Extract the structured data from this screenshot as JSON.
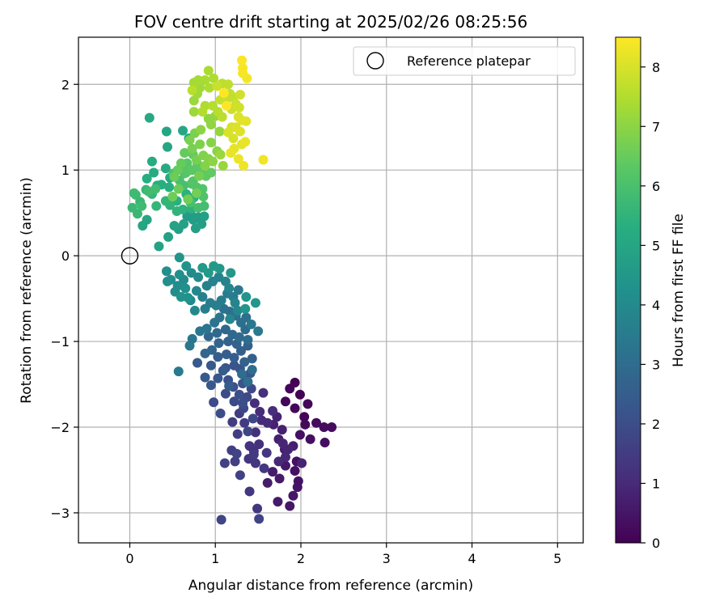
{
  "chart_data": {
    "type": "scatter",
    "title": "FOV centre drift starting at 2025/02/26 08:25:56",
    "xlabel": "Angular distance from reference (arcmin)",
    "ylabel": "Rotation from reference (arcmin)",
    "xlim": [
      -0.6,
      5.3
    ],
    "ylim": [
      -3.35,
      2.55
    ],
    "x_ticks": [
      0,
      1,
      2,
      3,
      4,
      5
    ],
    "y_ticks": [
      -3,
      -2,
      -1,
      0,
      1,
      2
    ],
    "grid": true,
    "legend": {
      "placement": "top-right",
      "entries": [
        "Reference platepar"
      ]
    },
    "colorbar": {
      "label": "Hours from first FF file",
      "range": [
        0,
        8.5
      ],
      "ticks": [
        0,
        1,
        2,
        3,
        4,
        5,
        6,
        7,
        8
      ],
      "colormap": "viridis"
    },
    "reference_point": {
      "x": 0,
      "y": 0,
      "name": "Reference platepar"
    },
    "series": [
      {
        "color_value": "hours",
        "points": [
          [
            1.93,
            -1.48
          ],
          [
            1.99,
            -1.62
          ],
          [
            2.04,
            -1.88
          ],
          [
            1.87,
            -1.55
          ],
          [
            1.82,
            -1.7
          ],
          [
            1.93,
            -1.78
          ],
          [
            2.08,
            -1.73
          ],
          [
            2.05,
            -1.97
          ],
          [
            2.18,
            -1.95
          ],
          [
            2.27,
            -2.0
          ],
          [
            2.36,
            -2.0
          ],
          [
            2.28,
            -2.18
          ],
          [
            2.11,
            -2.14
          ],
          [
            1.99,
            -2.09
          ],
          [
            1.95,
            -2.4
          ],
          [
            1.93,
            -2.51
          ],
          [
            1.97,
            -2.63
          ],
          [
            1.96,
            -2.7
          ],
          [
            1.91,
            -2.8
          ],
          [
            1.87,
            -2.92
          ],
          [
            1.82,
            -2.45
          ],
          [
            1.75,
            -2.6
          ],
          [
            1.73,
            -2.87
          ],
          [
            1.67,
            -2.52
          ],
          [
            1.61,
            -2.65
          ],
          [
            1.81,
            -2.26
          ],
          [
            1.74,
            -2.14
          ],
          [
            1.91,
            -2.22
          ],
          [
            1.78,
            -2.03
          ],
          [
            1.68,
            -1.97
          ],
          [
            1.72,
            -1.88
          ],
          [
            2.01,
            -2.42
          ],
          [
            1.85,
            -2.26
          ],
          [
            1.79,
            -2.19
          ],
          [
            1.82,
            -2.35
          ],
          [
            1.74,
            -2.4
          ],
          [
            1.61,
            -1.95
          ],
          [
            1.54,
            -1.92
          ],
          [
            1.52,
            -1.82
          ],
          [
            1.67,
            -1.81
          ],
          [
            1.46,
            -1.72
          ],
          [
            1.56,
            -1.6
          ],
          [
            1.47,
            -2.06
          ],
          [
            1.51,
            -2.2
          ],
          [
            1.45,
            -2.28
          ],
          [
            1.4,
            -2.22
          ],
          [
            1.47,
            -2.42
          ],
          [
            1.39,
            -2.37
          ],
          [
            1.6,
            -2.3
          ],
          [
            1.4,
            -2.75
          ],
          [
            1.49,
            -2.95
          ],
          [
            1.57,
            -2.48
          ],
          [
            1.45,
            -2.32
          ],
          [
            1.34,
            -1.95
          ],
          [
            1.28,
            -1.84
          ],
          [
            1.2,
            -1.94
          ],
          [
            1.26,
            -2.08
          ],
          [
            1.19,
            -2.27
          ],
          [
            1.23,
            -2.4
          ],
          [
            1.11,
            -2.42
          ],
          [
            1.29,
            -2.56
          ],
          [
            1.25,
            -2.31
          ],
          [
            1.51,
            -3.07
          ],
          [
            1.07,
            -3.08
          ],
          [
            1.44,
            -1.9
          ],
          [
            1.38,
            -2.05
          ],
          [
            1.33,
            -1.78
          ],
          [
            1.42,
            -1.55
          ],
          [
            1.37,
            -1.65
          ],
          [
            1.22,
            -1.7
          ],
          [
            1.12,
            -1.61
          ],
          [
            0.98,
            -1.71
          ],
          [
            1.06,
            -1.84
          ],
          [
            1.32,
            -1.72
          ],
          [
            1.28,
            -1.62
          ],
          [
            1.21,
            -1.53
          ],
          [
            1.15,
            -1.45
          ],
          [
            1.32,
            -1.49
          ],
          [
            1.36,
            -1.42
          ],
          [
            1.41,
            -1.37
          ],
          [
            1.29,
            -1.32
          ],
          [
            1.22,
            -1.28
          ],
          [
            1.12,
            -1.31
          ],
          [
            1.03,
            -1.43
          ],
          [
            0.95,
            -1.51
          ],
          [
            0.88,
            -1.42
          ],
          [
            0.79,
            -1.25
          ],
          [
            0.95,
            -1.28
          ],
          [
            1.09,
            -1.34
          ],
          [
            1.16,
            -1.52
          ],
          [
            1.03,
            -1.18
          ],
          [
            1.13,
            -1.15
          ],
          [
            1.22,
            -1.19
          ],
          [
            1.3,
            -1.11
          ],
          [
            1.38,
            -1.05
          ],
          [
            1.43,
            -1.2
          ],
          [
            1.34,
            -1.24
          ],
          [
            1.25,
            -1.03
          ],
          [
            1.15,
            -1.0
          ],
          [
            1.04,
            -1.02
          ],
          [
            0.96,
            -1.1
          ],
          [
            0.88,
            -1.14
          ],
          [
            0.92,
            -0.94
          ],
          [
            1.02,
            -0.9
          ],
          [
            1.12,
            -0.86
          ],
          [
            1.2,
            -0.92
          ],
          [
            1.28,
            -0.95
          ],
          [
            1.35,
            -0.86
          ],
          [
            1.38,
            -0.98
          ],
          [
            1.43,
            -1.33
          ],
          [
            1.31,
            -1.38
          ],
          [
            1.38,
            -1.47
          ],
          [
            1.36,
            -0.72
          ],
          [
            1.3,
            -0.78
          ],
          [
            1.24,
            -0.7
          ],
          [
            1.17,
            -0.65
          ],
          [
            1.1,
            -0.62
          ],
          [
            1.05,
            -0.72
          ],
          [
            0.99,
            -0.78
          ],
          [
            0.9,
            -0.85
          ],
          [
            0.82,
            -0.88
          ],
          [
            0.73,
            -0.97
          ],
          [
            0.7,
            -1.05
          ],
          [
            1.42,
            -0.8
          ],
          [
            1.5,
            -0.88
          ],
          [
            0.57,
            -1.35
          ],
          [
            1.27,
            -0.4
          ],
          [
            1.21,
            -0.48
          ],
          [
            1.14,
            -0.44
          ],
          [
            1.07,
            -0.52
          ],
          [
            1.01,
            -0.58
          ],
          [
            0.94,
            -0.55
          ],
          [
            0.88,
            -0.62
          ],
          [
            0.85,
            -0.48
          ],
          [
            0.9,
            -0.35
          ],
          [
            0.97,
            -0.3
          ],
          [
            1.04,
            -0.25
          ],
          [
            1.12,
            -0.3
          ],
          [
            1.16,
            -0.38
          ],
          [
            1.23,
            -0.55
          ],
          [
            1.26,
            -0.64
          ],
          [
            1.17,
            -0.74
          ],
          [
            0.78,
            -0.41
          ],
          [
            0.71,
            -0.52
          ],
          [
            0.76,
            -0.64
          ],
          [
            0.8,
            -0.25
          ],
          [
            0.72,
            -0.2
          ],
          [
            0.63,
            -0.28
          ],
          [
            0.56,
            -0.35
          ],
          [
            0.53,
            -0.42
          ],
          [
            0.48,
            -0.28
          ],
          [
            0.43,
            -0.18
          ],
          [
            0.44,
            -0.3
          ],
          [
            0.58,
            -0.22
          ],
          [
            0.65,
            -0.38
          ],
          [
            0.68,
            -0.49
          ],
          [
            0.6,
            -0.48
          ],
          [
            0.66,
            -0.12
          ],
          [
            0.58,
            -0.02
          ],
          [
            1.36,
            -0.48
          ],
          [
            1.47,
            -0.55
          ],
          [
            1.35,
            -0.62
          ],
          [
            1.18,
            -0.2
          ],
          [
            1.05,
            -0.15
          ],
          [
            0.92,
            -0.2
          ],
          [
            0.85,
            -0.14
          ],
          [
            0.98,
            -0.12
          ],
          [
            0.67,
            0.46
          ],
          [
            0.74,
            0.42
          ],
          [
            0.71,
            0.5
          ],
          [
            0.8,
            0.45
          ],
          [
            0.87,
            0.46
          ],
          [
            0.84,
            0.37
          ],
          [
            0.77,
            0.32
          ],
          [
            0.57,
            0.31
          ],
          [
            0.63,
            0.37
          ],
          [
            0.52,
            0.35
          ],
          [
            0.45,
            0.22
          ],
          [
            0.34,
            0.11
          ],
          [
            0.15,
            0.35
          ],
          [
            0.2,
            0.42
          ],
          [
            0.43,
            1.45
          ],
          [
            0.44,
            1.27
          ],
          [
            0.62,
            1.46
          ],
          [
            0.69,
            1.37
          ],
          [
            0.23,
            1.61
          ],
          [
            0.47,
            0.91
          ],
          [
            0.42,
            1.02
          ],
          [
            0.26,
            1.1
          ],
          [
            0.28,
            0.97
          ],
          [
            0.2,
            0.9
          ],
          [
            0.32,
            0.82
          ],
          [
            0.37,
            0.83
          ],
          [
            0.46,
            0.8
          ],
          [
            0.55,
            0.64
          ],
          [
            0.66,
            0.72
          ],
          [
            0.75,
            0.68
          ],
          [
            0.72,
            0.55
          ],
          [
            0.62,
            0.54
          ],
          [
            0.55,
            0.52
          ],
          [
            0.47,
            0.59
          ],
          [
            0.42,
            0.64
          ],
          [
            0.31,
            0.58
          ],
          [
            0.26,
            0.72
          ],
          [
            0.19,
            0.77
          ],
          [
            0.12,
            0.63
          ],
          [
            0.09,
            0.49
          ],
          [
            0.03,
            0.56
          ],
          [
            0.07,
            0.71
          ],
          [
            0.05,
            0.73
          ],
          [
            0.14,
            0.58
          ],
          [
            0.22,
            0.75
          ],
          [
            0.3,
            0.78
          ],
          [
            0.87,
            0.58
          ],
          [
            0.8,
            0.56
          ],
          [
            0.71,
            0.62
          ],
          [
            0.63,
            0.82
          ],
          [
            0.58,
            0.88
          ],
          [
            0.51,
            0.96
          ],
          [
            0.64,
            0.96
          ],
          [
            0.72,
            0.84
          ],
          [
            0.86,
            0.69
          ],
          [
            0.85,
            0.78
          ],
          [
            0.78,
            0.8
          ],
          [
            0.74,
            0.87
          ],
          [
            0.66,
            0.97
          ],
          [
            0.6,
            1.02
          ],
          [
            0.67,
            1.08
          ],
          [
            0.73,
            1.0
          ],
          [
            0.79,
            1.07
          ],
          [
            0.84,
            1.0
          ],
          [
            0.89,
            0.93
          ],
          [
            0.95,
            0.97
          ],
          [
            0.74,
            1.18
          ],
          [
            0.64,
            1.2
          ],
          [
            0.6,
            1.08
          ],
          [
            0.56,
            1.0
          ],
          [
            0.52,
            0.92
          ],
          [
            0.57,
            0.78
          ],
          [
            0.5,
            0.69
          ],
          [
            0.68,
            0.66
          ],
          [
            0.78,
            0.73
          ],
          [
            0.81,
            0.93
          ],
          [
            0.78,
            1.12
          ],
          [
            0.73,
            1.25
          ],
          [
            0.7,
            1.35
          ],
          [
            0.76,
            1.43
          ],
          [
            0.82,
            1.3
          ],
          [
            0.86,
            1.17
          ],
          [
            0.92,
            1.13
          ],
          [
            0.88,
            1.05
          ],
          [
            0.95,
            1.32
          ],
          [
            1.02,
            1.22
          ],
          [
            0.97,
            1.1
          ],
          [
            0.83,
            1.47
          ],
          [
            0.92,
            1.6
          ],
          [
            0.95,
            1.53
          ],
          [
            1.0,
            1.63
          ],
          [
            1.05,
            1.45
          ],
          [
            1.09,
            1.05
          ],
          [
            1.06,
            1.18
          ],
          [
            0.75,
            1.81
          ],
          [
            0.75,
            1.68
          ],
          [
            0.79,
            1.89
          ],
          [
            0.82,
            1.96
          ],
          [
            0.75,
            2.02
          ],
          [
            0.8,
            2.05
          ],
          [
            0.88,
            2.05
          ],
          [
            0.92,
            2.16
          ],
          [
            0.93,
            1.96
          ],
          [
            0.98,
            2.07
          ],
          [
            0.88,
            1.75
          ],
          [
            0.85,
            1.68
          ],
          [
            0.97,
            1.75
          ],
          [
            1.03,
            1.68
          ],
          [
            0.73,
            1.93
          ],
          [
            1.08,
            1.62
          ],
          [
            1.08,
            2.01
          ],
          [
            1.15,
            2.0
          ],
          [
            1.17,
            1.89
          ],
          [
            1.21,
            1.85
          ],
          [
            1.13,
            1.82
          ],
          [
            1.06,
            1.82
          ],
          [
            1.02,
            1.98
          ],
          [
            1.19,
            1.71
          ],
          [
            1.24,
            1.77
          ],
          [
            1.28,
            1.73
          ],
          [
            1.29,
            1.88
          ],
          [
            1.19,
            1.5
          ],
          [
            1.21,
            1.37
          ],
          [
            1.15,
            1.44
          ],
          [
            1.27,
            1.62
          ],
          [
            1.24,
            1.5
          ],
          [
            1.29,
            1.45
          ],
          [
            1.31,
            1.58
          ],
          [
            1.36,
            1.57
          ],
          [
            1.31,
            1.3
          ],
          [
            1.22,
            1.25
          ],
          [
            1.18,
            1.2
          ],
          [
            1.35,
            1.33
          ],
          [
            1.27,
            1.13
          ],
          [
            1.33,
            1.05
          ],
          [
            1.56,
            1.12
          ],
          [
            1.37,
            2.07
          ],
          [
            1.32,
            2.13
          ],
          [
            1.32,
            2.19
          ],
          [
            1.31,
            2.28
          ],
          [
            1.13,
            1.75
          ],
          [
            1.1,
            1.9
          ]
        ]
      }
    ]
  }
}
